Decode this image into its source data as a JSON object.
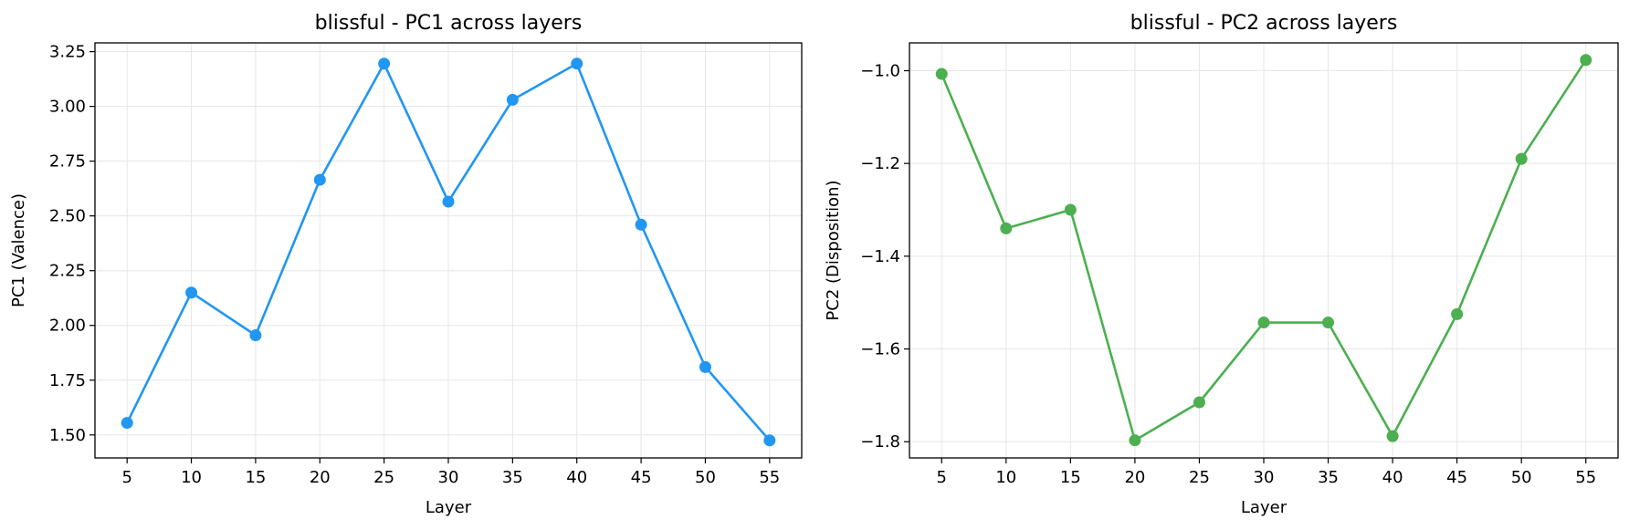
{
  "chart_data": [
    {
      "type": "line",
      "title": "blissful - PC1 across layers",
      "xlabel": "Layer",
      "ylabel": "PC1 (Valence)",
      "x": [
        5,
        10,
        15,
        20,
        25,
        30,
        35,
        40,
        45,
        50,
        55
      ],
      "xticks": [
        "5",
        "10",
        "15",
        "20",
        "25",
        "30",
        "35",
        "40",
        "45",
        "50",
        "55"
      ],
      "yticks": [
        "1.50",
        "1.75",
        "2.00",
        "2.25",
        "2.50",
        "2.75",
        "3.00",
        "3.25"
      ],
      "ylim": [
        1.395,
        3.29
      ],
      "grid": true,
      "series": [
        {
          "color": "#2196F3",
          "marker": "circle",
          "values": [
            1.555,
            2.15,
            1.955,
            2.665,
            3.195,
            2.565,
            3.03,
            3.195,
            2.46,
            1.81,
            1.475
          ]
        }
      ]
    },
    {
      "type": "line",
      "title": "blissful - PC2 across layers",
      "xlabel": "Layer",
      "ylabel": "PC2 (Disposition)",
      "x": [
        5,
        10,
        15,
        20,
        25,
        30,
        35,
        40,
        45,
        50,
        55
      ],
      "xticks": [
        "5",
        "10",
        "15",
        "20",
        "25",
        "30",
        "35",
        "40",
        "45",
        "50",
        "55"
      ],
      "yticks": [
        "−1.8",
        "−1.6",
        "−1.4",
        "−1.2",
        "−1.0"
      ],
      "ylim": [
        -1.835,
        -0.94
      ],
      "grid": true,
      "series": [
        {
          "color": "#4CAF50",
          "marker": "circle",
          "values": [
            -1.007,
            -1.34,
            -1.3,
            -1.797,
            -1.715,
            -1.543,
            -1.543,
            -1.788,
            -1.525,
            -1.19,
            -0.977
          ]
        }
      ]
    }
  ]
}
